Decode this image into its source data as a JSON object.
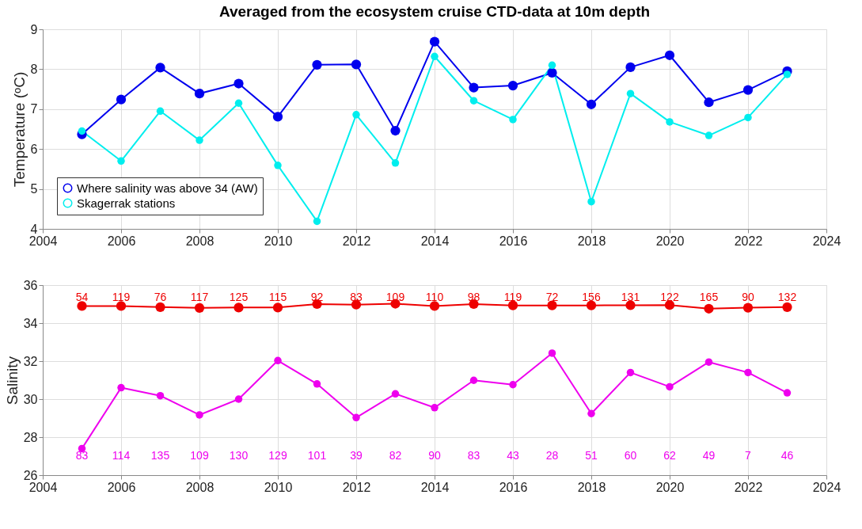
{
  "chart_data": [
    {
      "type": "line",
      "title": "Averaged from the ecosystem cruise CTD-data at 10m depth",
      "ylabel": "Temperature (ᵒC)",
      "x": [
        2005,
        2006,
        2007,
        2008,
        2009,
        2010,
        2011,
        2012,
        2013,
        2014,
        2015,
        2016,
        2017,
        2018,
        2019,
        2020,
        2021,
        2022,
        2023
      ],
      "series": [
        {
          "name": "Where salinity was above 34 (AW)",
          "color": "#0000ee",
          "values": [
            6.37,
            7.24,
            8.04,
            7.39,
            7.64,
            6.81,
            8.11,
            8.12,
            6.46,
            8.69,
            7.54,
            7.59,
            7.91,
            7.12,
            8.05,
            8.35,
            7.17,
            7.48,
            7.95
          ]
        },
        {
          "name": "Skagerrak stations",
          "color": "#00eeee",
          "values": [
            6.45,
            5.7,
            6.95,
            6.22,
            7.15,
            5.59,
            4.19,
            6.86,
            5.65,
            8.32,
            7.21,
            6.74,
            8.1,
            4.68,
            7.39,
            6.68,
            6.34,
            6.79,
            7.87
          ]
        }
      ],
      "xlim": [
        2004,
        2024
      ],
      "xticks": [
        2004,
        2006,
        2008,
        2010,
        2012,
        2014,
        2016,
        2018,
        2020,
        2022,
        2024
      ],
      "ylim": [
        4,
        9
      ],
      "yticks": [
        4,
        5,
        6,
        7,
        8,
        9
      ],
      "grid": true,
      "legend": "bottom left",
      "marker": "circle",
      "line_style": "solid"
    },
    {
      "type": "line",
      "ylabel": "Salinity",
      "x": [
        2005,
        2006,
        2007,
        2008,
        2009,
        2010,
        2011,
        2012,
        2013,
        2014,
        2015,
        2016,
        2017,
        2018,
        2019,
        2020,
        2021,
        2022,
        2023
      ],
      "series": [
        {
          "color": "#ee0000",
          "values": [
            34.9,
            34.9,
            34.84,
            34.8,
            34.82,
            34.82,
            35.0,
            34.97,
            35.02,
            34.9,
            35.0,
            34.93,
            34.93,
            34.93,
            34.94,
            34.95,
            34.76,
            34.81,
            34.84
          ]
        },
        {
          "color": "#ee00ee",
          "values": [
            27.4,
            30.6,
            30.18,
            29.17,
            30.0,
            32.03,
            30.8,
            29.03,
            30.28,
            29.55,
            30.99,
            30.76,
            32.42,
            29.24,
            31.4,
            30.65,
            31.95,
            31.4,
            30.33
          ]
        }
      ],
      "annotations": [
        "54",
        "119",
        "76",
        "117",
        "125",
        "115",
        "92",
        "83",
        "109",
        "110",
        "98",
        "119",
        "72",
        "156",
        "131",
        "122",
        "165",
        "90",
        "132",
        "83",
        "114",
        "135",
        "109",
        "130",
        "129",
        "101",
        "39",
        "82",
        "90",
        "83",
        "43",
        "28",
        "51",
        "60",
        "62",
        "49",
        "7",
        "46"
      ],
      "xlim": [
        2004,
        2024
      ],
      "xticks": [
        2004,
        2006,
        2008,
        2010,
        2012,
        2014,
        2016,
        2018,
        2020,
        2022,
        2024
      ],
      "ylim": [
        26,
        36
      ],
      "yticks": [
        26,
        28,
        30,
        32,
        34,
        36
      ],
      "grid": true,
      "marker": "circle",
      "line_style": "solid"
    }
  ]
}
